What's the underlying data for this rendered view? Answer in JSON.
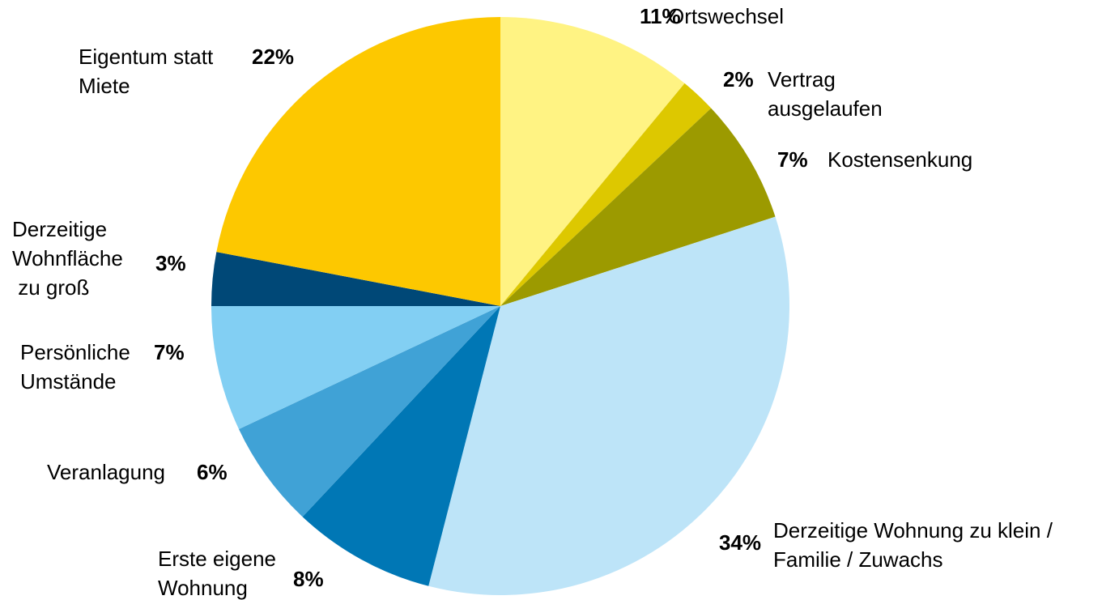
{
  "chart_data": {
    "type": "pie",
    "categories": [
      "Ortswechsel",
      "Vertrag\nausgelaufen",
      "Kostensenkung",
      "Derzeitige Wohnung zu klein /\nFamilie / Zuwachs",
      "Erste eigene\nWohnung",
      "Veranlagung",
      "Persönliche\nUmstände",
      "Derzeitige\nWohnfläche\n zu groß",
      "Eigentum statt\nMiete"
    ],
    "values": [
      11,
      2,
      7,
      34,
      8,
      6,
      7,
      3,
      22
    ],
    "value_labels": [
      "11%",
      "2%",
      "7%",
      "34%",
      "8%",
      "6%",
      "7%",
      "3%",
      "22%"
    ],
    "colors": [
      "#fff383",
      "#ddc800",
      "#9c9a00",
      "#bde4f8",
      "#0077b5",
      "#40a2d6",
      "#82cff3",
      "#004877",
      "#fdc800"
    ]
  }
}
